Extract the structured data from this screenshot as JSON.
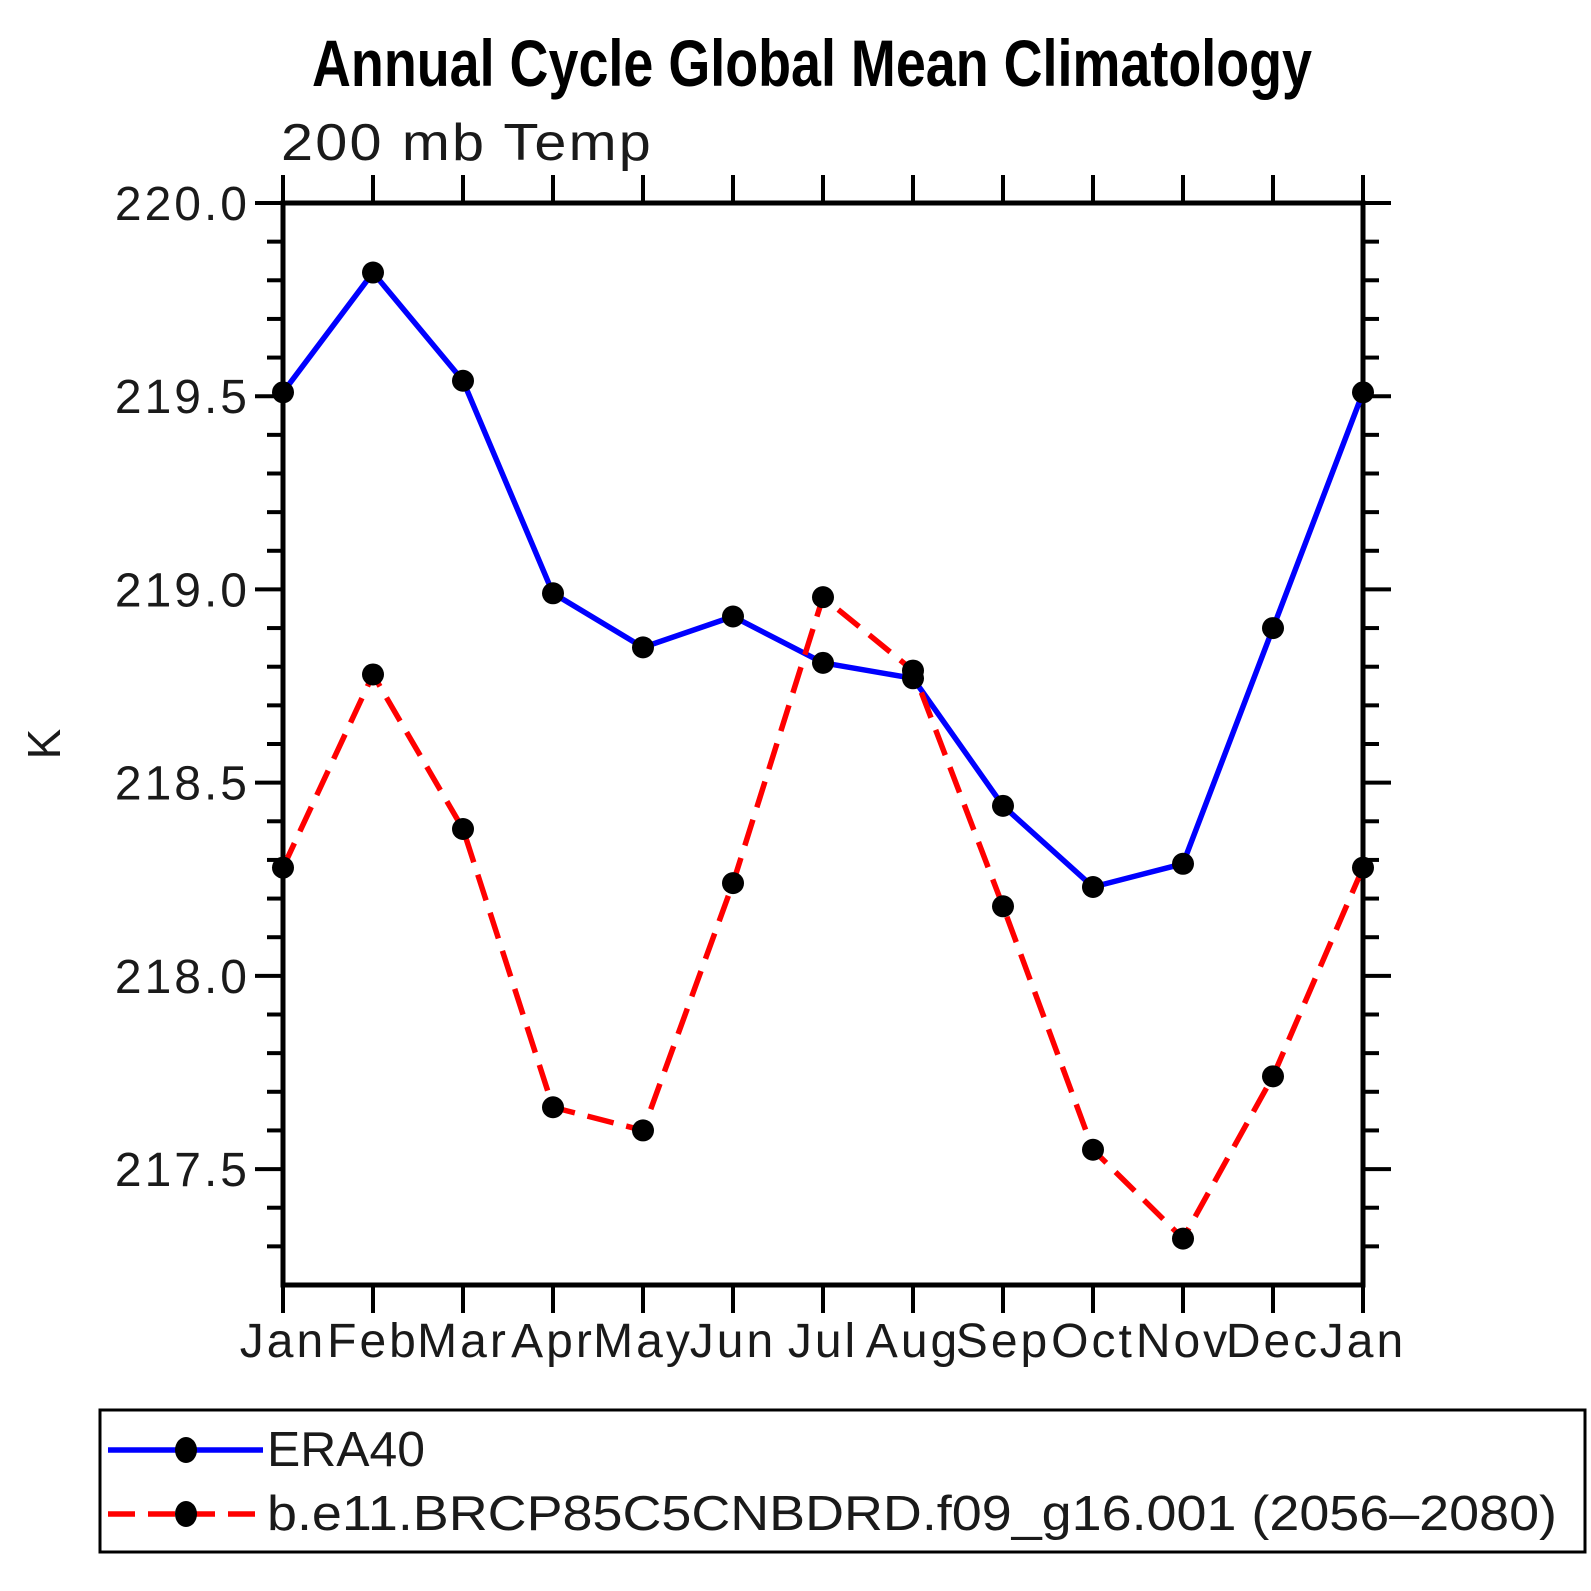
{
  "page": {
    "background_color": "#ffffff",
    "text_color": "#000000"
  },
  "header": {
    "title": "Annual Cycle Global Mean Climatology",
    "subtitle": "200 mb Temp"
  },
  "chart_data": {
    "type": "line",
    "title": "Annual Cycle Global Mean Climatology",
    "subtitle": "200 mb Temp",
    "xlabel": "",
    "ylabel": "K",
    "categories": [
      "Jan",
      "Feb",
      "Mar",
      "Apr",
      "May",
      "Jun",
      "Jul",
      "Aug",
      "Sep",
      "Oct",
      "Nov",
      "Dec",
      "Jan"
    ],
    "y_axis": {
      "min": 217.2,
      "max": 220.0,
      "major_tick_interval": 0.5,
      "minor_tick_interval": 0.1,
      "major_tick_values": [
        217.5,
        218.0,
        218.5,
        219.0,
        219.5,
        220.0
      ],
      "major_tick_labels": [
        "217.5",
        "218.0",
        "218.5",
        "219.0",
        "219.5",
        "220.0"
      ]
    },
    "grid": false,
    "legend_position": "bottom",
    "series": [
      {
        "name": "ERA40",
        "color": "#0000ff",
        "line_style": "solid",
        "marker": "filled-circle",
        "marker_color": "#000000",
        "values": [
          219.51,
          219.82,
          219.54,
          218.99,
          218.85,
          218.93,
          218.81,
          218.77,
          218.44,
          218.23,
          218.29,
          218.9,
          219.51
        ]
      },
      {
        "name": "b.e11.BRCP85C5CNBDRD.f09_g16.001 (2056–2080)",
        "color": "#ff0000",
        "line_style": "dashed",
        "marker": "filled-circle",
        "marker_color": "#000000",
        "values": [
          218.28,
          218.78,
          218.38,
          217.66,
          217.6,
          218.24,
          218.98,
          218.79,
          218.18,
          217.55,
          217.32,
          217.74,
          218.28
        ]
      }
    ]
  }
}
